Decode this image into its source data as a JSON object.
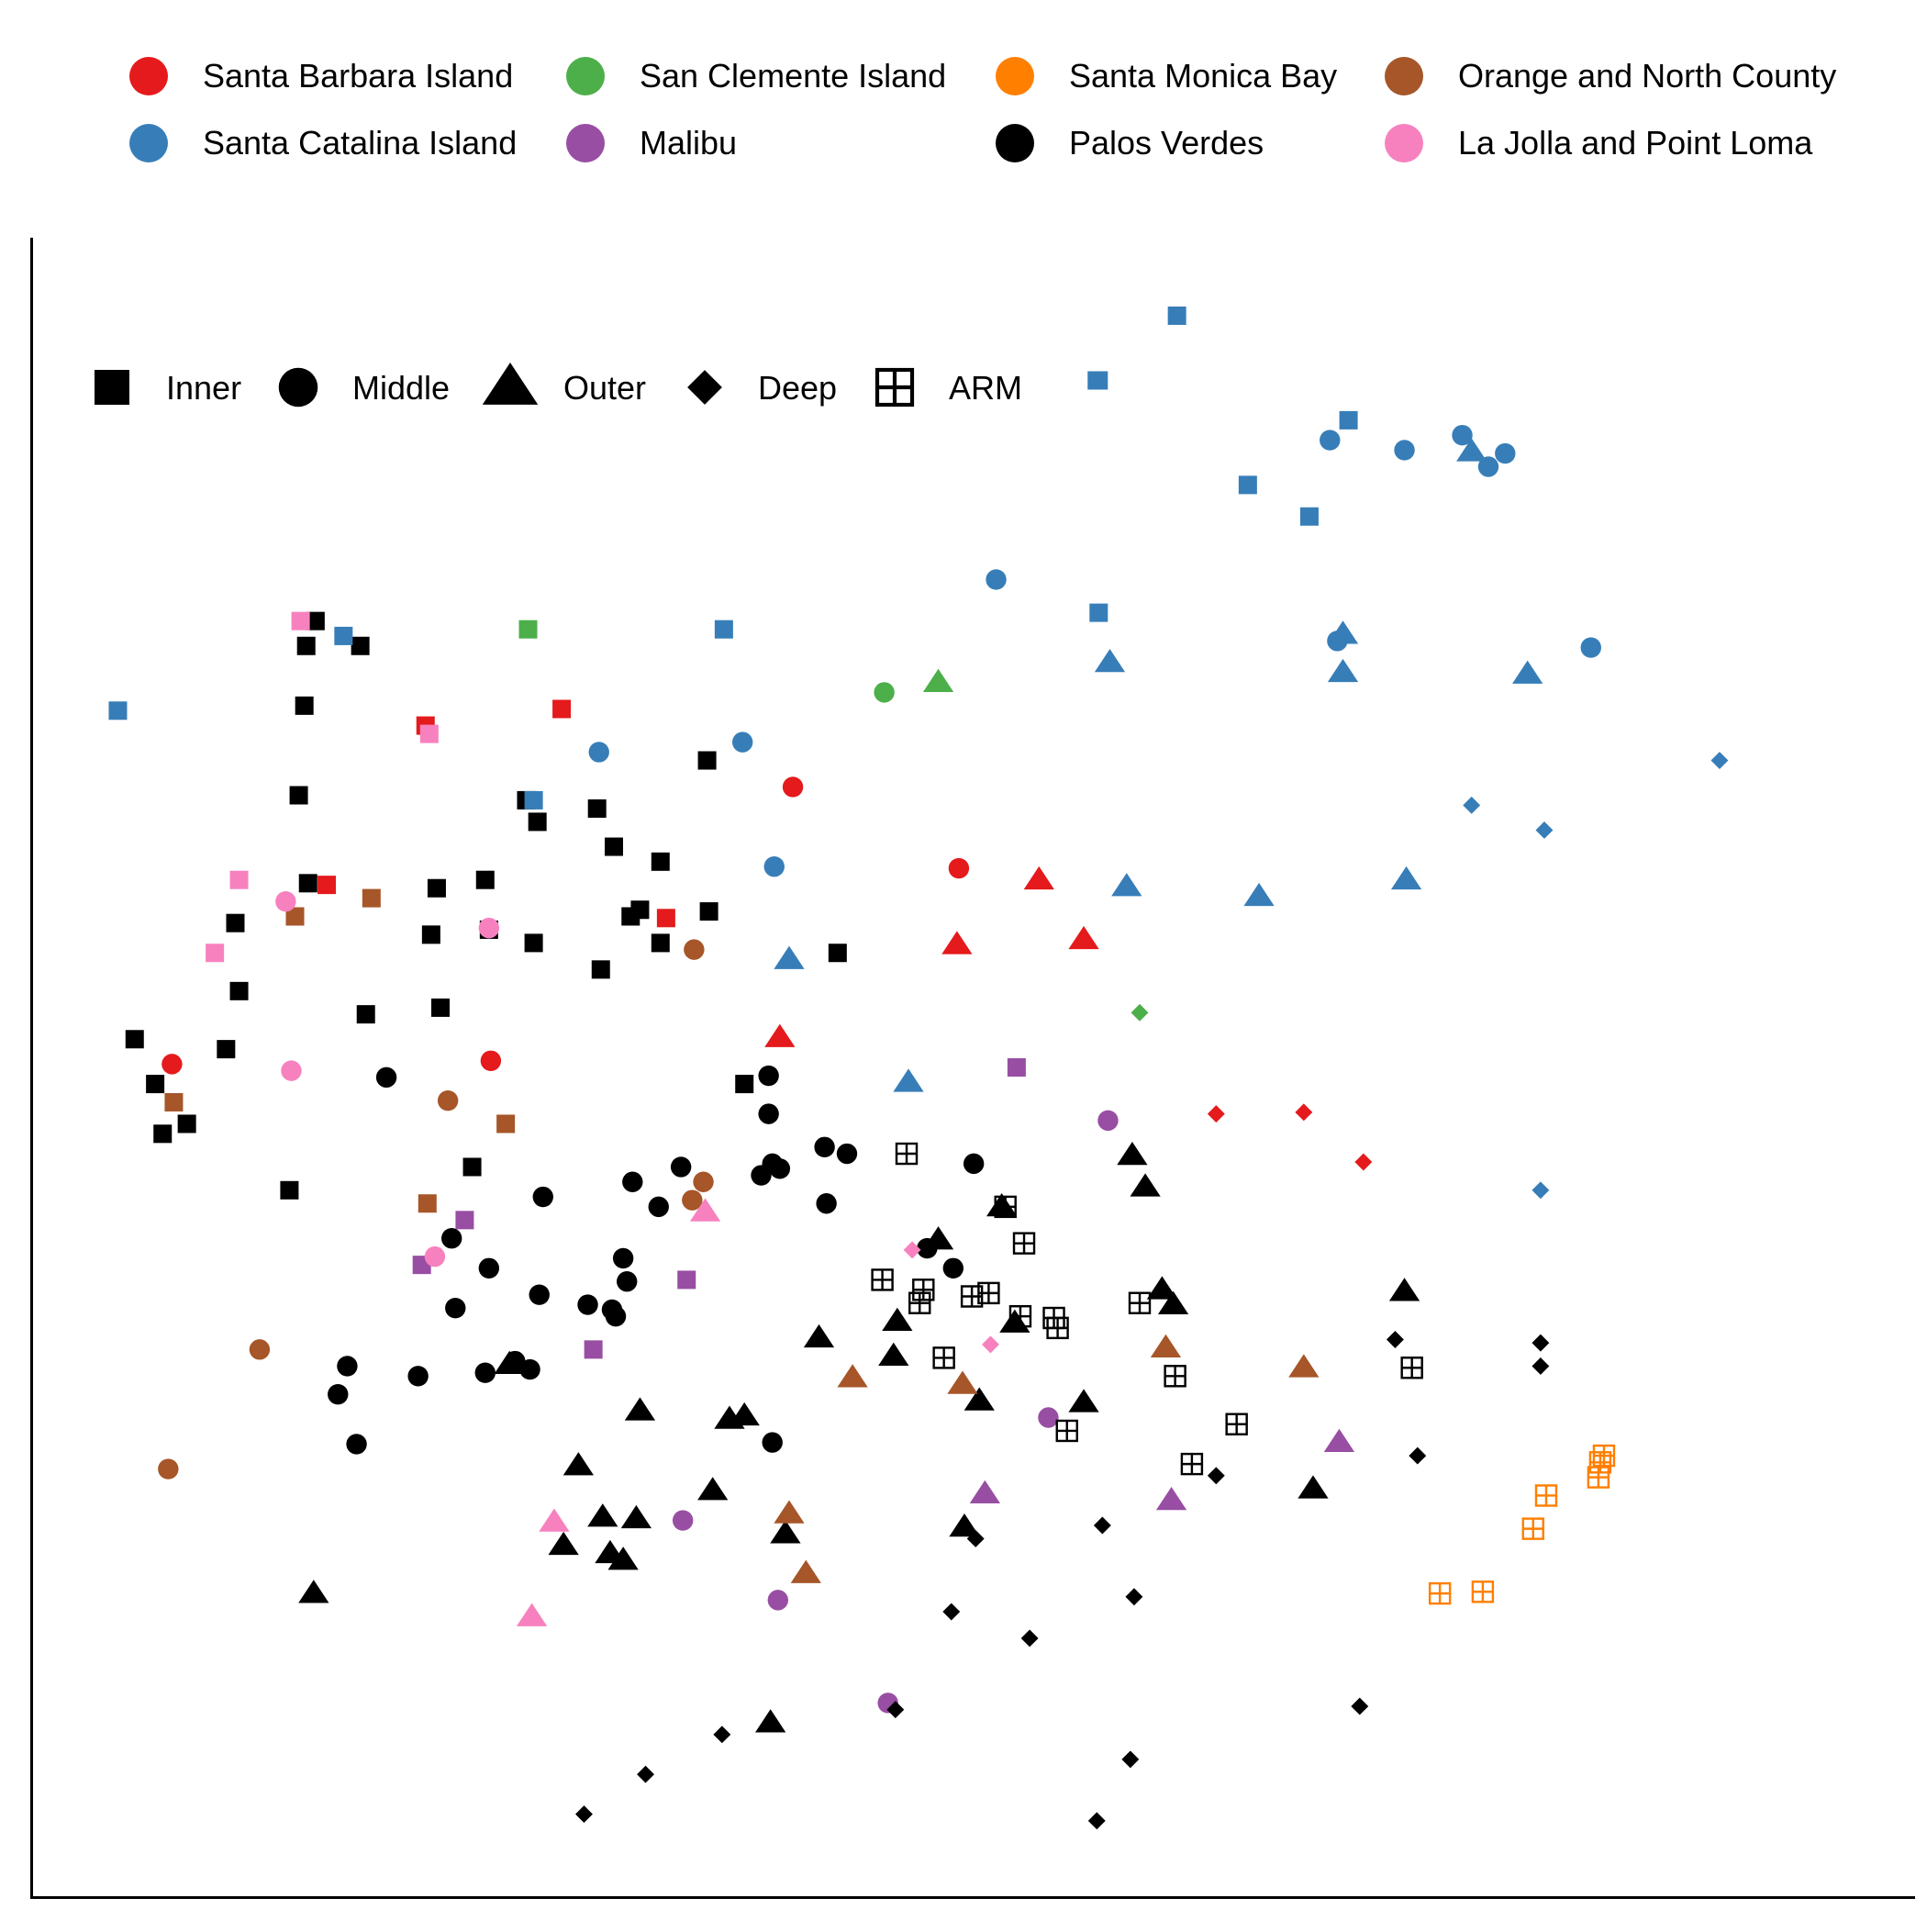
{
  "chart_data": {
    "type": "scatter",
    "title": "",
    "xlabel": "",
    "ylabel": "",
    "xlim": [
      0,
      100
    ],
    "ylim": [
      0,
      100
    ],
    "grid": false,
    "axes": "left-bottom lines only, no ticks",
    "color_legend": {
      "placement": "top",
      "entries": [
        {
          "key": "SBI",
          "label": "Santa Barbara Island",
          "color": "#e41a1c"
        },
        {
          "key": "SCI",
          "label": "Santa Catalina Island",
          "color": "#377eb8"
        },
        {
          "key": "SCL",
          "label": "San Clemente Island",
          "color": "#4daf4a"
        },
        {
          "key": "MAL",
          "label": "Malibu",
          "color": "#984ea3"
        },
        {
          "key": "SMB",
          "label": "Santa Monica Bay",
          "color": "#ff7f00"
        },
        {
          "key": "PV",
          "label": "Palos Verdes",
          "color": "#000000"
        },
        {
          "key": "ONC",
          "label": "Orange and North County",
          "color": "#a65628"
        },
        {
          "key": "LJ",
          "label": "La Jolla and Point Loma",
          "color": "#f781bf"
        }
      ]
    },
    "shape_legend": {
      "placement": "top-left",
      "entries": [
        {
          "key": "I",
          "label": "Inner",
          "shape": "square"
        },
        {
          "key": "M",
          "label": "Middle",
          "shape": "circle"
        },
        {
          "key": "O",
          "label": "Outer",
          "shape": "triangle"
        },
        {
          "key": "D",
          "label": "Deep",
          "shape": "diamond"
        },
        {
          "key": "A",
          "label": "ARM",
          "shape": "boxed-plus"
        }
      ]
    },
    "points": [
      [
        4.6,
        71.5,
        "SCI",
        "I"
      ],
      [
        6.6,
        49.0,
        "PV",
        "I"
      ],
      [
        5.5,
        51.7,
        "PV",
        "I"
      ],
      [
        8.3,
        46.6,
        "PV",
        "I"
      ],
      [
        7.0,
        46.0,
        "PV",
        "I"
      ],
      [
        11.1,
        54.6,
        "PV",
        "I"
      ],
      [
        10.9,
        58.7,
        "PV",
        "I"
      ],
      [
        10.4,
        51.1,
        "PV",
        "I"
      ],
      [
        13.8,
        42.6,
        "PV",
        "I"
      ],
      [
        14.3,
        66.4,
        "PV",
        "I"
      ],
      [
        14.6,
        71.8,
        "PV",
        "I"
      ],
      [
        14.7,
        75.4,
        "PV",
        "I"
      ],
      [
        15.2,
        76.9,
        "PV",
        "I"
      ],
      [
        14.8,
        61.1,
        "PV",
        "I"
      ],
      [
        17.6,
        75.4,
        "PV",
        "I"
      ],
      [
        17.9,
        53.2,
        "PV",
        "I"
      ],
      [
        21.9,
        53.6,
        "PV",
        "I"
      ],
      [
        21.4,
        58.0,
        "PV",
        "I"
      ],
      [
        21.7,
        60.8,
        "PV",
        "I"
      ],
      [
        24.3,
        61.3,
        "PV",
        "I"
      ],
      [
        24.5,
        58.3,
        "PV",
        "I"
      ],
      [
        26.9,
        57.5,
        "PV",
        "I"
      ],
      [
        23.6,
        44.0,
        "PV",
        "I"
      ],
      [
        26.5,
        66.1,
        "PV",
        "I"
      ],
      [
        27.1,
        64.8,
        "PV",
        "I"
      ],
      [
        30.3,
        65.6,
        "PV",
        "I"
      ],
      [
        31.2,
        63.3,
        "PV",
        "I"
      ],
      [
        30.5,
        55.9,
        "PV",
        "I"
      ],
      [
        32.1,
        59.1,
        "PV",
        "I"
      ],
      [
        32.6,
        59.5,
        "PV",
        "I"
      ],
      [
        33.7,
        57.5,
        "PV",
        "I"
      ],
      [
        33.7,
        62.4,
        "PV",
        "I"
      ],
      [
        36.3,
        59.4,
        "PV",
        "I"
      ],
      [
        38.2,
        49.0,
        "PV",
        "I"
      ],
      [
        43.2,
        56.9,
        "PV",
        "I"
      ],
      [
        36.2,
        68.5,
        "PV",
        "I"
      ],
      [
        16.7,
        76.0,
        "SCI",
        "I"
      ],
      [
        37.1,
        76.4,
        "SCI",
        "I"
      ],
      [
        57.2,
        77.4,
        "SCI",
        "I"
      ],
      [
        57.2,
        91.4,
        "SCI",
        "I"
      ],
      [
        57.1,
        91.4,
        "SCI",
        "I"
      ],
      [
        61.4,
        95.3,
        "SCI",
        "I"
      ],
      [
        65.2,
        85.1,
        "SCI",
        "I"
      ],
      [
        68.5,
        83.2,
        "SCI",
        "I"
      ],
      [
        70.6,
        89.0,
        "SCI",
        "I"
      ],
      [
        26.9,
        66.1,
        "SCI",
        "I"
      ],
      [
        21.1,
        70.6,
        "SBI",
        "I"
      ],
      [
        28.4,
        71.6,
        "SBI",
        "I"
      ],
      [
        15.8,
        61.0,
        "SBI",
        "I"
      ],
      [
        34.0,
        59.0,
        "SBI",
        "I"
      ],
      [
        26.6,
        76.4,
        "SCL",
        "I"
      ],
      [
        14.4,
        76.9,
        "LJ",
        "I"
      ],
      [
        21.3,
        70.1,
        "LJ",
        "I"
      ],
      [
        11.1,
        61.3,
        "LJ",
        "I"
      ],
      [
        9.8,
        56.9,
        "LJ",
        "I"
      ],
      [
        14.1,
        59.1,
        "ONC",
        "I"
      ],
      [
        18.2,
        60.2,
        "ONC",
        "I"
      ],
      [
        7.6,
        47.9,
        "ONC",
        "I"
      ],
      [
        25.4,
        46.6,
        "ONC",
        "I"
      ],
      [
        21.2,
        41.8,
        "ONC",
        "I"
      ],
      [
        52.8,
        50.0,
        "MAL",
        "I"
      ],
      [
        23.2,
        40.8,
        "MAL",
        "I"
      ],
      [
        20.9,
        38.1,
        "MAL",
        "I"
      ],
      [
        35.1,
        37.2,
        "MAL",
        "I"
      ],
      [
        30.1,
        33.0,
        "MAL",
        "I"
      ],
      [
        19.0,
        49.4,
        "PV",
        "M"
      ],
      [
        22.5,
        39.7,
        "PV",
        "M"
      ],
      [
        24.5,
        37.9,
        "PV",
        "M"
      ],
      [
        22.7,
        35.5,
        "PV",
        "M"
      ],
      [
        16.9,
        32.0,
        "PV",
        "M"
      ],
      [
        16.4,
        30.3,
        "PV",
        "M"
      ],
      [
        17.4,
        27.3,
        "PV",
        "M"
      ],
      [
        20.7,
        31.4,
        "PV",
        "M"
      ],
      [
        24.3,
        31.6,
        "PV",
        "M"
      ],
      [
        25.9,
        32.3,
        "PV",
        "M"
      ],
      [
        26.7,
        31.8,
        "PV",
        "M"
      ],
      [
        27.2,
        36.3,
        "PV",
        "M"
      ],
      [
        27.4,
        42.2,
        "PV",
        "M"
      ],
      [
        31.9,
        37.1,
        "PV",
        "M"
      ],
      [
        29.8,
        35.7,
        "PV",
        "M"
      ],
      [
        31.1,
        35.4,
        "PV",
        "M"
      ],
      [
        31.3,
        35.0,
        "PV",
        "M"
      ],
      [
        31.7,
        38.5,
        "PV",
        "M"
      ],
      [
        32.2,
        43.1,
        "PV",
        "M"
      ],
      [
        33.6,
        41.6,
        "PV",
        "M"
      ],
      [
        34.8,
        44.0,
        "PV",
        "M"
      ],
      [
        39.1,
        43.5,
        "PV",
        "M"
      ],
      [
        39.7,
        44.2,
        "PV",
        "M"
      ],
      [
        40.1,
        43.9,
        "PV",
        "M"
      ],
      [
        39.5,
        49.5,
        "PV",
        "M"
      ],
      [
        39.5,
        47.2,
        "PV",
        "M"
      ],
      [
        42.5,
        45.2,
        "PV",
        "M"
      ],
      [
        43.7,
        44.8,
        "PV",
        "M"
      ],
      [
        42.6,
        41.8,
        "PV",
        "M"
      ],
      [
        48.0,
        39.1,
        "PV",
        "M"
      ],
      [
        49.4,
        37.9,
        "PV",
        "M"
      ],
      [
        50.5,
        44.2,
        "PV",
        "M"
      ],
      [
        39.7,
        27.4,
        "PV",
        "M"
      ],
      [
        69.6,
        87.8,
        "SCI",
        "M"
      ],
      [
        73.6,
        87.2,
        "SCI",
        "M"
      ],
      [
        76.7,
        88.1,
        "SCI",
        "M"
      ],
      [
        78.1,
        86.2,
        "SCI",
        "M"
      ],
      [
        79.0,
        87.0,
        "SCI",
        "M"
      ],
      [
        70.0,
        75.7,
        "SCI",
        "M"
      ],
      [
        83.6,
        75.3,
        "SCI",
        "M"
      ],
      [
        51.7,
        79.4,
        "SCI",
        "M"
      ],
      [
        38.1,
        69.6,
        "SCI",
        "M"
      ],
      [
        30.4,
        69.0,
        "SCI",
        "M"
      ],
      [
        39.8,
        62.1,
        "SCI",
        "M"
      ],
      [
        45.7,
        72.6,
        "SCL",
        "M"
      ],
      [
        40.8,
        66.9,
        "SBI",
        "M"
      ],
      [
        49.7,
        62.0,
        "SBI",
        "M"
      ],
      [
        24.6,
        50.4,
        "SBI",
        "M"
      ],
      [
        7.5,
        50.2,
        "SBI",
        "M"
      ],
      [
        13.6,
        60.0,
        "LJ",
        "M"
      ],
      [
        24.5,
        58.4,
        "LJ",
        "M"
      ],
      [
        13.9,
        49.8,
        "LJ",
        "M"
      ],
      [
        21.6,
        38.6,
        "LJ",
        "M"
      ],
      [
        35.5,
        57.1,
        "ONC",
        "M"
      ],
      [
        22.3,
        48.0,
        "ONC",
        "M"
      ],
      [
        12.2,
        33.0,
        "ONC",
        "M"
      ],
      [
        7.3,
        25.8,
        "ONC",
        "M"
      ],
      [
        36.0,
        43.1,
        "ONC",
        "M"
      ],
      [
        35.4,
        42.0,
        "ONC",
        "M"
      ],
      [
        57.7,
        46.8,
        "MAL",
        "M"
      ],
      [
        54.5,
        28.9,
        "MAL",
        "M"
      ],
      [
        34.9,
        22.7,
        "MAL",
        "M"
      ],
      [
        40.0,
        17.9,
        "MAL",
        "M"
      ],
      [
        45.9,
        11.7,
        "MAL",
        "M"
      ],
      [
        15.1,
        18.3,
        "PV",
        "O"
      ],
      [
        25.6,
        32.1,
        "PV",
        "O"
      ],
      [
        28.5,
        21.2,
        "PV",
        "O"
      ],
      [
        32.6,
        29.3,
        "PV",
        "O"
      ],
      [
        29.3,
        26.0,
        "PV",
        "O"
      ],
      [
        30.6,
        22.9,
        "PV",
        "O"
      ],
      [
        31.0,
        20.7,
        "PV",
        "O"
      ],
      [
        31.7,
        20.3,
        "PV",
        "O"
      ],
      [
        32.4,
        22.8,
        "PV",
        "O"
      ],
      [
        36.5,
        24.5,
        "PV",
        "O"
      ],
      [
        37.4,
        28.8,
        "PV",
        "O"
      ],
      [
        38.2,
        29.0,
        "PV",
        "O"
      ],
      [
        42.2,
        33.7,
        "PV",
        "O"
      ],
      [
        46.2,
        32.6,
        "PV",
        "O"
      ],
      [
        46.4,
        34.7,
        "PV",
        "O"
      ],
      [
        48.6,
        39.6,
        "PV",
        "O"
      ],
      [
        52.0,
        41.6,
        "PV",
        "O"
      ],
      [
        52.7,
        34.6,
        "PV",
        "O"
      ],
      [
        50.8,
        29.9,
        "PV",
        "O"
      ],
      [
        59.0,
        44.7,
        "PV",
        "O"
      ],
      [
        59.7,
        42.8,
        "PV",
        "O"
      ],
      [
        60.6,
        36.6,
        "PV",
        "O"
      ],
      [
        61.2,
        35.7,
        "PV",
        "O"
      ],
      [
        40.4,
        21.9,
        "PV",
        "O"
      ],
      [
        50.0,
        22.3,
        "PV",
        "O"
      ],
      [
        39.6,
        10.5,
        "PV",
        "O"
      ],
      [
        73.6,
        36.5,
        "PV",
        "O"
      ],
      [
        68.7,
        24.6,
        "PV",
        "O"
      ],
      [
        56.4,
        29.8,
        "PV",
        "O"
      ],
      [
        77.2,
        87.1,
        "SCI",
        "O"
      ],
      [
        70.3,
        76.1,
        "SCI",
        "O"
      ],
      [
        57.8,
        74.4,
        "SCI",
        "O"
      ],
      [
        70.3,
        73.8,
        "SCI",
        "O"
      ],
      [
        80.2,
        73.7,
        "SCI",
        "O"
      ],
      [
        65.8,
        60.3,
        "SCI",
        "O"
      ],
      [
        73.7,
        61.3,
        "SCI",
        "O"
      ],
      [
        58.7,
        60.9,
        "SCI",
        "O"
      ],
      [
        40.6,
        56.5,
        "SCI",
        "O"
      ],
      [
        47.0,
        49.1,
        "SCI",
        "O"
      ],
      [
        48.6,
        73.2,
        "SCL",
        "O"
      ],
      [
        54.0,
        61.3,
        "SBI",
        "O"
      ],
      [
        49.6,
        57.4,
        "SBI",
        "O"
      ],
      [
        56.4,
        57.7,
        "SBI",
        "O"
      ],
      [
        40.1,
        51.8,
        "SBI",
        "O"
      ],
      [
        36.1,
        41.3,
        "LJ",
        "O"
      ],
      [
        28.0,
        22.6,
        "LJ",
        "O"
      ],
      [
        26.8,
        16.9,
        "LJ",
        "O"
      ],
      [
        44.0,
        31.3,
        "ONC",
        "O"
      ],
      [
        49.9,
        30.9,
        "ONC",
        "O"
      ],
      [
        60.8,
        33.1,
        "ONC",
        "O"
      ],
      [
        68.2,
        31.9,
        "ONC",
        "O"
      ],
      [
        40.6,
        23.1,
        "ONC",
        "O"
      ],
      [
        41.5,
        19.5,
        "ONC",
        "O"
      ],
      [
        70.1,
        27.4,
        "MAL",
        "O"
      ],
      [
        61.1,
        23.9,
        "MAL",
        "O"
      ],
      [
        51.1,
        24.3,
        "MAL",
        "O"
      ],
      [
        80.9,
        42.6,
        "SCI",
        "D"
      ],
      [
        77.2,
        65.8,
        "SCI",
        "D"
      ],
      [
        81.1,
        64.3,
        "SCI",
        "D"
      ],
      [
        90.5,
        68.5,
        "SCI",
        "D"
      ],
      [
        59.4,
        53.3,
        "SCL",
        "D"
      ],
      [
        63.5,
        47.2,
        "SBI",
        "D"
      ],
      [
        68.2,
        47.3,
        "SBI",
        "D"
      ],
      [
        71.4,
        44.3,
        "SBI",
        "D"
      ],
      [
        47.2,
        39.0,
        "LJ",
        "D"
      ],
      [
        51.4,
        33.3,
        "LJ",
        "D"
      ],
      [
        73.1,
        33.6,
        "PV",
        "D"
      ],
      [
        80.9,
        33.4,
        "PV",
        "D"
      ],
      [
        80.9,
        32.0,
        "PV",
        "D"
      ],
      [
        74.3,
        26.6,
        "PV",
        "D"
      ],
      [
        63.5,
        25.4,
        "PV",
        "D"
      ],
      [
        57.4,
        22.4,
        "PV",
        "D"
      ],
      [
        50.6,
        21.6,
        "PV",
        "D"
      ],
      [
        59.1,
        18.1,
        "PV",
        "D"
      ],
      [
        49.3,
        17.2,
        "PV",
        "D"
      ],
      [
        53.5,
        15.6,
        "PV",
        "D"
      ],
      [
        46.3,
        11.3,
        "PV",
        "D"
      ],
      [
        71.2,
        11.5,
        "PV",
        "D"
      ],
      [
        58.9,
        8.3,
        "PV",
        "D"
      ],
      [
        57.1,
        4.6,
        "PV",
        "D"
      ],
      [
        37.0,
        9.8,
        "PV",
        "D"
      ],
      [
        32.9,
        7.4,
        "PV",
        "D"
      ],
      [
        29.6,
        5.0,
        "PV",
        "D"
      ],
      [
        46.9,
        44.8,
        "PV",
        "A"
      ],
      [
        52.2,
        41.6,
        "PV",
        "A"
      ],
      [
        53.2,
        39.4,
        "PV",
        "A"
      ],
      [
        45.6,
        37.2,
        "PV",
        "A"
      ],
      [
        47.8,
        36.6,
        "PV",
        "A"
      ],
      [
        47.6,
        35.8,
        "PV",
        "A"
      ],
      [
        50.4,
        36.2,
        "PV",
        "A"
      ],
      [
        51.3,
        36.4,
        "PV",
        "A"
      ],
      [
        53.0,
        35.0,
        "PV",
        "A"
      ],
      [
        54.8,
        34.9,
        "PV",
        "A"
      ],
      [
        55.0,
        34.3,
        "PV",
        "A"
      ],
      [
        59.4,
        35.8,
        "PV",
        "A"
      ],
      [
        48.9,
        32.5,
        "PV",
        "A"
      ],
      [
        61.3,
        31.4,
        "PV",
        "A"
      ],
      [
        74.0,
        31.9,
        "PV",
        "A"
      ],
      [
        55.5,
        28.1,
        "PV",
        "A"
      ],
      [
        62.2,
        26.1,
        "PV",
        "A"
      ],
      [
        64.6,
        28.5,
        "PV",
        "A"
      ],
      [
        84.1,
        26.2,
        "SMB",
        "A"
      ],
      [
        84.3,
        26.6,
        "SMB",
        "A"
      ],
      [
        84.0,
        25.3,
        "SMB",
        "A"
      ],
      [
        81.2,
        24.2,
        "SMB",
        "A"
      ],
      [
        80.5,
        22.2,
        "SMB",
        "A"
      ],
      [
        75.5,
        18.3,
        "SMB",
        "A"
      ],
      [
        77.8,
        18.4,
        "SMB",
        "A"
      ]
    ]
  }
}
